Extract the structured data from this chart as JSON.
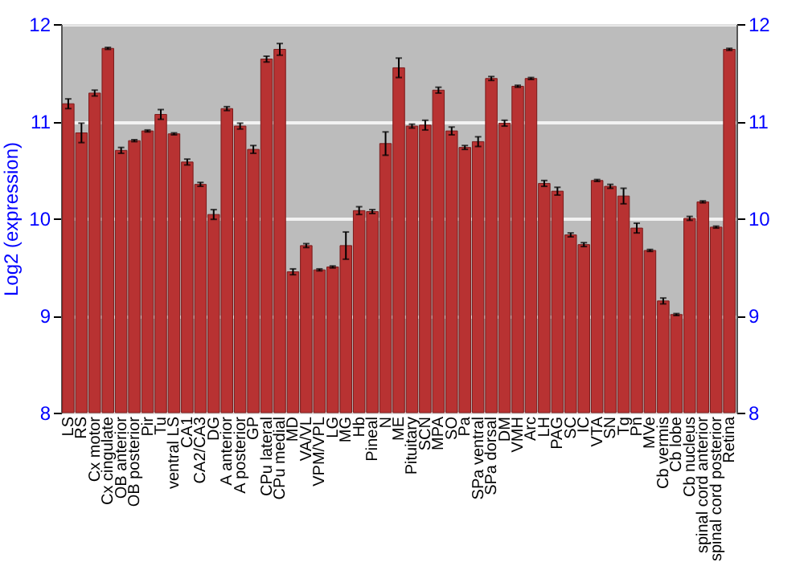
{
  "chart_data": {
    "type": "bar",
    "ylabel": "Log2 (expression)",
    "categories": [
      "LS",
      "RS",
      "Cx motor",
      "Cx cingulate",
      "OB anterior",
      "OB posterior",
      "Pir",
      "Tu",
      "ventral LS",
      "CA1",
      "CA2/CA3",
      "DG",
      "A anterior",
      "A posterior",
      "GP",
      "CPu lateral",
      "CPu medial",
      "MD",
      "VA/VL",
      "VPM/VPL",
      "LG",
      "MG",
      "Hb",
      "Pineal",
      "N",
      "ME",
      "Pituitary",
      "SCN",
      "MPA",
      "SO",
      "Pa",
      "SPa ventral",
      "SPa dorsal",
      "DM",
      "VMH",
      "Arc",
      "LH",
      "PAG",
      "SC",
      "IC",
      "VTA",
      "SN",
      "Tg",
      "Pn",
      "MVe",
      "Cb vermis",
      "Cb lobe",
      "Cb nucleus",
      "spinal cord anterior",
      "spinal cord posterior",
      "Retina"
    ],
    "series": [
      {
        "color": "#b83232",
        "values": [
          11.18,
          10.88,
          11.29,
          11.75,
          10.7,
          10.8,
          10.9,
          11.07,
          10.87,
          10.58,
          10.35,
          10.04,
          11.13,
          10.95,
          10.71,
          11.64,
          11.74,
          9.45,
          9.72,
          9.47,
          9.5,
          9.72,
          10.08,
          10.07,
          10.77,
          11.55,
          10.95,
          10.96,
          11.32,
          10.9,
          10.73,
          10.79,
          11.44,
          10.98,
          11.36,
          11.44,
          10.36,
          10.28,
          9.83,
          9.73,
          10.39,
          10.33,
          10.23,
          9.9,
          9.67,
          9.15,
          9.01,
          10.0,
          10.17,
          9.91,
          11.74
        ],
        "errors": [
          0.05,
          0.1,
          0.03,
          0.01,
          0.03,
          0.01,
          0.01,
          0.05,
          0.01,
          0.03,
          0.02,
          0.05,
          0.02,
          0.03,
          0.04,
          0.03,
          0.06,
          0.03,
          0.02,
          0.01,
          0.01,
          0.14,
          0.04,
          0.02,
          0.12,
          0.1,
          0.02,
          0.05,
          0.03,
          0.04,
          0.02,
          0.05,
          0.02,
          0.03,
          0.01,
          0.01,
          0.03,
          0.04,
          0.02,
          0.02,
          0.01,
          0.02,
          0.08,
          0.05,
          0.01,
          0.03,
          0.01,
          0.02,
          0.01,
          0.01,
          0.01
        ]
      }
    ],
    "ylim": [
      8,
      12
    ],
    "yticks": [
      8,
      9,
      10,
      11,
      12
    ],
    "y2lim": [
      8,
      12
    ],
    "y2ticks": [
      8,
      9,
      10,
      11,
      12
    ],
    "grid": "y"
  }
}
